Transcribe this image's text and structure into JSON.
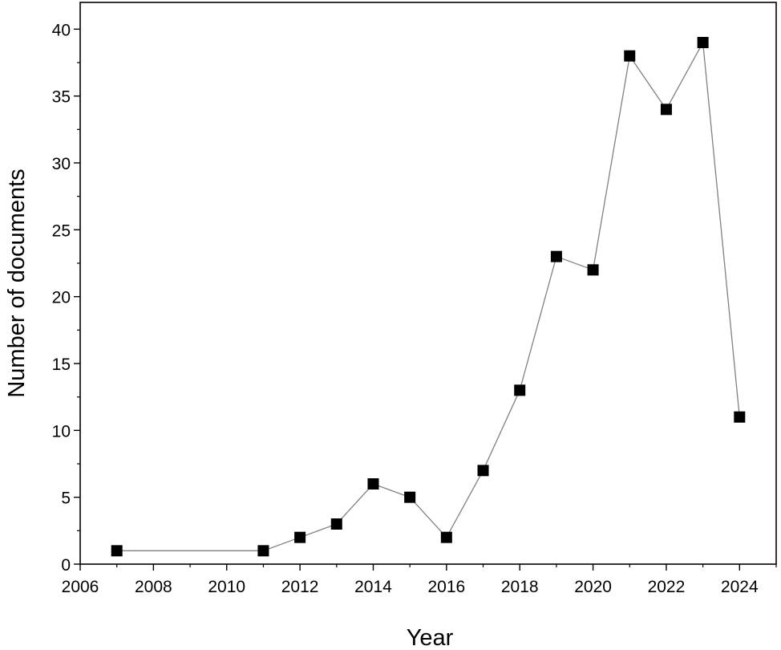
{
  "chart_data": {
    "type": "line",
    "title": "",
    "xlabel": "Year",
    "ylabel": "Number of documents",
    "xlim": [
      2006,
      2025
    ],
    "ylim": [
      0,
      42
    ],
    "x_ticks": [
      2006,
      2008,
      2010,
      2012,
      2014,
      2016,
      2018,
      2020,
      2022,
      2024
    ],
    "y_ticks": [
      0,
      5,
      10,
      15,
      20,
      25,
      30,
      35,
      40
    ],
    "grid": false,
    "legend": "none",
    "marker": "square",
    "series": [
      {
        "x": [
          2007,
          2011,
          2012,
          2013,
          2014,
          2015,
          2016,
          2017,
          2018,
          2019,
          2020,
          2021,
          2022,
          2023,
          2024
        ],
        "y": [
          1,
          1,
          2,
          3,
          6,
          5,
          2,
          7,
          13,
          23,
          22,
          38,
          34,
          39,
          11
        ]
      }
    ],
    "colors": {
      "line": "#808080",
      "marker": "#000000",
      "axis": "#000000"
    }
  }
}
